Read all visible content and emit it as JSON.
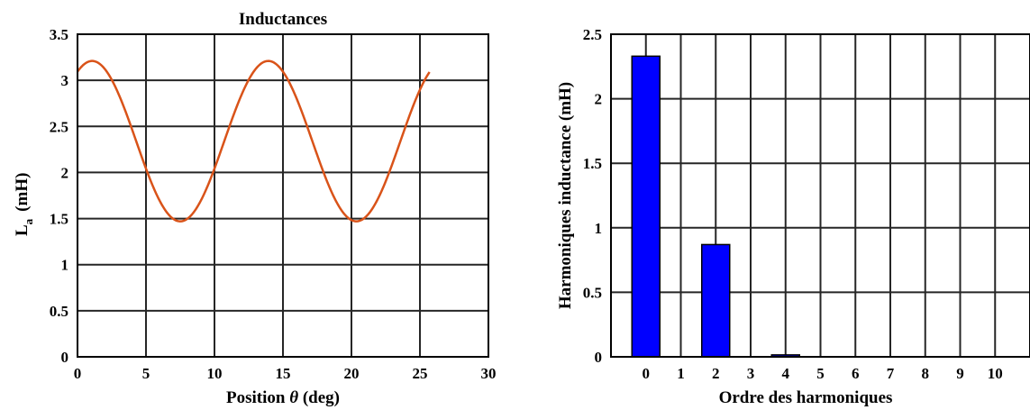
{
  "chart_data": [
    {
      "type": "line",
      "title": "Inductances",
      "xlabel": "Position θ (deg)",
      "xlabel_prefix": "Position ",
      "xlabel_symbol": "θ",
      "xlabel_suffix": " (deg)",
      "ylabel": "La (mH)",
      "ylabel_main": "L",
      "ylabel_sub": "a",
      "ylabel_unit": "(mH)",
      "xlim": [
        0,
        30
      ],
      "ylim": [
        0,
        3.5
      ],
      "xticks": [
        "0",
        "5",
        "10",
        "15",
        "20",
        "25",
        "30"
      ],
      "yticks": [
        "0",
        "0.5",
        "1",
        "1.5",
        "2",
        "2.5",
        "3",
        "3.5"
      ],
      "grid": true,
      "line_color": "#d95319",
      "series": [
        {
          "function": "La = 2.34 + 0.87·cos(2π(θ − 1.07)/12.86)",
          "x_range": [
            0,
            25.7
          ],
          "mean": 2.34,
          "amplitude": 0.87,
          "period": 12.86,
          "peak_position": 1.07,
          "x": [
            0,
            1.07,
            4.29,
            7.5,
            10.72,
            13.93,
            17.15,
            20.36,
            23.58,
            25.7
          ],
          "y": [
            3.1,
            3.21,
            2.34,
            1.47,
            2.34,
            3.21,
            2.34,
            1.47,
            2.34,
            3.05
          ]
        }
      ]
    },
    {
      "type": "bar",
      "title": "",
      "xlabel": "Ordre des harmoniques",
      "ylabel": "Harmoniques inductance (mH)",
      "categories": [
        "0",
        "1",
        "2",
        "3",
        "4",
        "5",
        "6",
        "7",
        "8",
        "9",
        "10"
      ],
      "values": [
        2.33,
        0,
        0.87,
        0,
        0.015,
        0,
        0,
        0,
        0,
        0,
        0
      ],
      "xlim": [
        -1,
        11
      ],
      "ylim": [
        0,
        2.5
      ],
      "yticks": [
        "0",
        "0.5",
        "1",
        "1.5",
        "2",
        "2.5"
      ],
      "grid": true,
      "bar_color": "#0000ff"
    }
  ]
}
